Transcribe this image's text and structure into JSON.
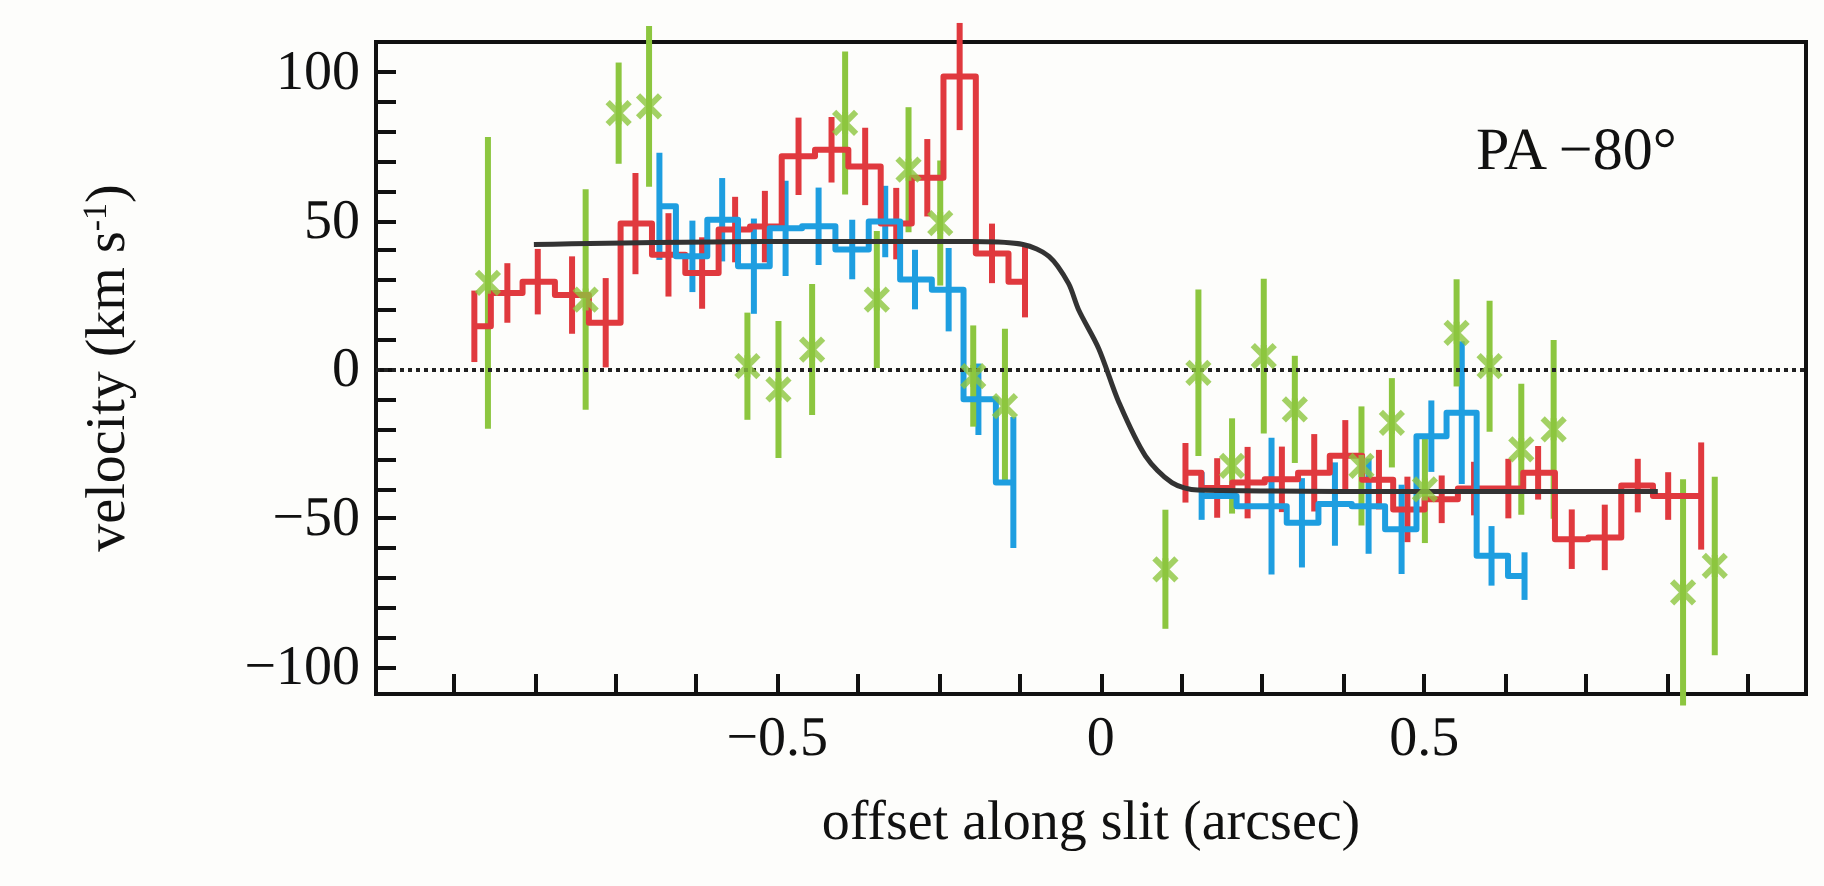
{
  "chart_data": {
    "type": "step",
    "xlabel": "offset along slit (arcsec)",
    "ylabel": "velocity (km s$^{-1}$)",
    "annotations": [
      "PA −80°"
    ],
    "xlim": [
      -1.12,
      1.09
    ],
    "ylim": [
      -109,
      110
    ],
    "xticks": [
      {
        "value": -1,
        "label": null
      },
      {
        "value": -0.875,
        "label": null
      },
      {
        "value": -0.75,
        "label": null
      },
      {
        "value": -0.625,
        "label": null
      },
      {
        "value": -0.5,
        "label": "−0.5"
      },
      {
        "value": -0.375,
        "label": null
      },
      {
        "value": -0.25,
        "label": null
      },
      {
        "value": -0.125,
        "label": null
      },
      0,
      {
        "value": 0.125,
        "label": null
      },
      {
        "value": 0.25,
        "label": null
      },
      {
        "value": 0.375,
        "label": null
      },
      0.5,
      {
        "value": 0.625,
        "label": null
      },
      {
        "value": 0.75,
        "label": null
      },
      {
        "value": 0.875,
        "label": null
      },
      {
        "value": 1,
        "label": null
      }
    ],
    "yticks": [
      {
        "value": -100,
        "label": "−100"
      },
      {
        "value": -90,
        "label": null
      },
      {
        "value": -80,
        "label": null
      },
      {
        "value": -70,
        "label": null
      },
      {
        "value": -60,
        "label": null
      },
      {
        "value": -50,
        "label": "−50"
      },
      {
        "value": -40,
        "label": null
      },
      {
        "value": -30,
        "label": null
      },
      {
        "value": -20,
        "label": null
      },
      {
        "value": -10,
        "label": null
      },
      0,
      {
        "value": 10,
        "label": null
      },
      {
        "value": 20,
        "label": null
      },
      {
        "value": 30,
        "label": null
      },
      {
        "value": 40,
        "label": null
      },
      50,
      {
        "value": 60,
        "label": null
      },
      {
        "value": 70,
        "label": null
      },
      {
        "value": 80,
        "label": null
      },
      {
        "value": 90,
        "label": null
      },
      100
    ],
    "grid": false,
    "marker": "none",
    "ref_lines": [
      {
        "axis": "y",
        "value": 0,
        "line_style": "dotted",
        "color": "#222222"
      }
    ],
    "series": [
      {
        "color": "#e0393e",
        "x": [
          -0.968,
          -0.917,
          -0.87,
          -0.817,
          -0.765,
          -0.719,
          -0.668,
          -0.616,
          -0.565,
          -0.519,
          -0.467,
          -0.416,
          -0.364,
          -0.316,
          -0.268,
          -0.218,
          -0.168,
          -0.117
        ],
        "values": [
          14.5,
          25.7,
          29.5,
          25,
          15.7,
          49,
          38.5,
          32.4,
          47,
          48,
          71.6,
          73.8,
          68.2,
          49,
          64.4,
          98.4,
          39,
          29.5
        ],
        "errors": [
          12,
          10,
          11,
          13,
          15,
          17,
          14,
          12,
          11,
          12,
          13,
          11,
          13,
          12,
          13,
          18,
          10,
          12
        ]
      },
      {
        "color": "#e0393e",
        "x": [
          0.131,
          0.18,
          0.227,
          0.28,
          0.33,
          0.378,
          0.43,
          0.474,
          0.527,
          0.577,
          0.63,
          0.676,
          0.728,
          0.779,
          0.83,
          0.877,
          0.928
        ],
        "values": [
          -34.7,
          -39.8,
          -38,
          -36.9,
          -34.7,
          -29,
          -37,
          -47,
          -43.6,
          -40,
          -40,
          -34.7,
          -57,
          -56.4,
          -39,
          -42.5,
          -42.5
        ],
        "errors": [
          10,
          10,
          12,
          11,
          13,
          12,
          10,
          11,
          8,
          9,
          10,
          9,
          10,
          11,
          9,
          8,
          18
        ]
      },
      {
        "color": "#1e9ee0",
        "x": [
          -0.682,
          -0.631,
          -0.585,
          -0.536,
          -0.487,
          -0.436,
          -0.384,
          -0.333,
          -0.287,
          -0.235,
          -0.189,
          -0.135
        ],
        "values": [
          54.8,
          38,
          50.3,
          34.7,
          47.4,
          48.1,
          40.3,
          49.7,
          30.2,
          26.8,
          -10,
          -38
        ],
        "errors": [
          18,
          12,
          14,
          16,
          16,
          13,
          10,
          12,
          10,
          14,
          12,
          22
        ]
      },
      {
        "color": "#1e9ee0",
        "x": [
          0.156,
          0.264,
          0.311,
          0.362,
          0.414,
          0.465,
          0.511,
          0.558,
          0.604,
          0.655
        ],
        "values": [
          -42.5,
          -45.9,
          -51.5,
          -45.2,
          -45.9,
          -53.7,
          -22.4,
          -14.5,
          -62.6,
          -69.4
        ],
        "errors": [
          8,
          23,
          15,
          14,
          16,
          15,
          12,
          24,
          10,
          8
        ]
      },
      {
        "type": "scatter",
        "marker": "cross",
        "color": "#8cc63f",
        "x": [
          -0.947,
          -0.796,
          -0.745,
          -0.698,
          -0.546,
          -0.498,
          -0.446,
          -0.395,
          -0.346,
          -0.297,
          -0.248,
          -0.197,
          -0.148,
          0.1,
          0.151,
          0.203,
          0.252,
          0.3,
          0.403,
          0.45,
          0.501,
          0.55,
          0.601,
          0.65,
          0.7,
          0.9,
          0.949
        ],
        "values": [
          29.1,
          23.5,
          86.1,
          88.4,
          1.1,
          -6.7,
          6.7,
          82.8,
          23.5,
          67.1,
          49.2,
          -2.2,
          -12.3,
          -67.1,
          -1.1,
          -32.4,
          4.5,
          -13.4,
          -32.4,
          -17.9,
          -40.3,
          12.3,
          1.1,
          -26.8,
          -20.1,
          -74.9,
          -66
        ],
        "errors": [
          49,
          37,
          17,
          27,
          18,
          23,
          22,
          24,
          23,
          21,
          21,
          17,
          26,
          20,
          28,
          16,
          26,
          18,
          20,
          15,
          18,
          18,
          22,
          22,
          30,
          38,
          30
        ]
      },
      {
        "type": "line",
        "color": "#333333",
        "x": [
          -0.876,
          -0.5,
          -0.2,
          -0.12,
          -0.08,
          -0.05,
          -0.034,
          -0.003,
          0.028,
          0.069,
          0.11,
          0.15,
          0.5,
          0.861
        ],
        "values": [
          42,
          43,
          43,
          42,
          38,
          29,
          20,
          7,
          -11,
          -29,
          -38,
          -40.5,
          -41,
          -41
        ]
      }
    ]
  }
}
